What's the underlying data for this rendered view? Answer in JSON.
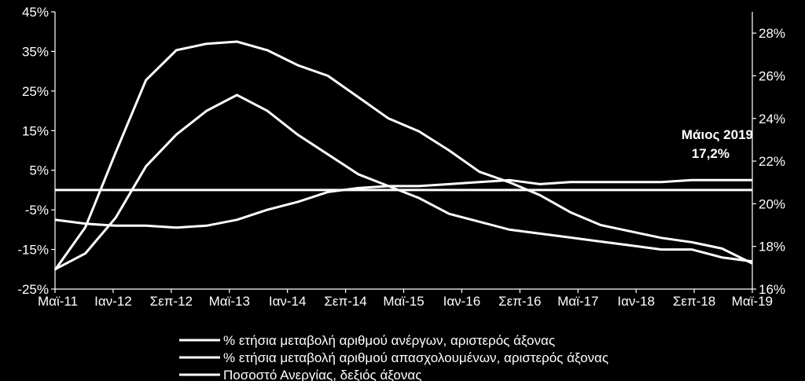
{
  "chart_data": {
    "type": "line",
    "x_labels": [
      "Μαϊ-11",
      "Ιαν-12",
      "Σεπ-12",
      "Μαϊ-13",
      "Ιαν-14",
      "Σεπ-14",
      "Μαϊ-15",
      "Ιαν-16",
      "Σεπ-16",
      "Μαϊ-17",
      "Ιαν-18",
      "Σεπ-18",
      "Μαϊ-19"
    ],
    "left_axis": {
      "min": -25,
      "max": 45,
      "ticks": [
        "45%",
        "35%",
        "25%",
        "15%",
        "5%",
        "-5%",
        "-15%",
        "-25%"
      ],
      "tick_values": [
        45,
        35,
        25,
        15,
        5,
        -5,
        -15,
        -25
      ]
    },
    "right_axis": {
      "min": 16,
      "max": 29,
      "ticks": [
        "28%",
        "26%",
        "24%",
        "22%",
        "20%",
        "18%",
        "16%"
      ],
      "tick_values": [
        28,
        26,
        24,
        22,
        20,
        18,
        16
      ]
    },
    "grid": false,
    "legend_position": "bottom",
    "line_color": "#ffffff",
    "zero_line": 0,
    "series": [
      {
        "name": "% ετήσια μεταβολή αριθμού ανέργων, αριστερός άξονας",
        "axis": "left",
        "values": [
          -20,
          -16,
          -7,
          6,
          14,
          20,
          24,
          20,
          14,
          9,
          4,
          1,
          -2,
          -6,
          -8,
          -10,
          -11,
          -12,
          -13,
          -14,
          -15,
          -15,
          -17,
          -18
        ]
      },
      {
        "name": "% ετήσια μεταβολή αριθμού απασχολουμένων, αριστερός άξονας",
        "axis": "left",
        "values": [
          -7.5,
          -8.5,
          -9,
          -9,
          -9.5,
          -9,
          -7.5,
          -5,
          -3,
          -0.5,
          0.5,
          1,
          1,
          1.5,
          2,
          2.5,
          1.5,
          2,
          2,
          2,
          2,
          2.5,
          2.5,
          2.5
        ]
      },
      {
        "name": "Ποσοστό Ανεργίας, δεξιός άξονας",
        "axis": "right",
        "values": [
          16.9,
          18.9,
          22.4,
          25.8,
          27.2,
          27.5,
          27.6,
          27.2,
          26.5,
          26.0,
          25.0,
          24.0,
          23.4,
          22.5,
          21.5,
          21.0,
          20.4,
          19.6,
          19.0,
          18.7,
          18.4,
          18.2,
          17.9,
          17.2
        ]
      }
    ],
    "annotation": {
      "title": "Μάιος 2019",
      "value": "17,2%"
    }
  }
}
